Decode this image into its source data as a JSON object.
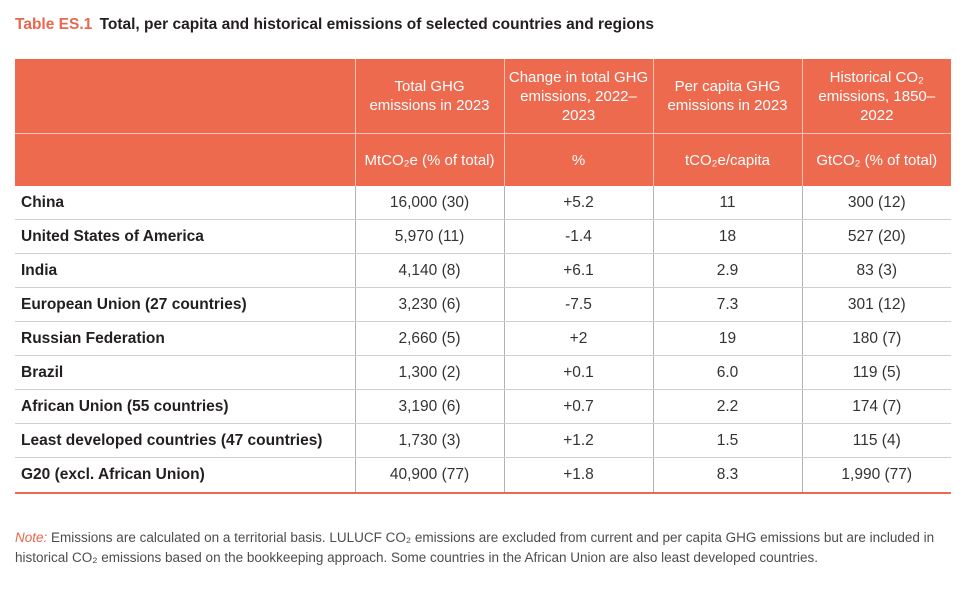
{
  "caption": {
    "number": "Table ES.1",
    "title": "Total, per capita and historical emissions of selected countries and regions"
  },
  "table": {
    "headers": [
      "",
      "Total GHG emissions in 2023",
      "Change in total GHG emissions, 2022–2023",
      "Per capita GHG emissions in 2023",
      "Historical CO₂ emissions, 1850–2022"
    ],
    "units": [
      "",
      "MtCO₂e (% of total)",
      "%",
      "tCO₂e/capita",
      "GtCO₂ (% of total)"
    ],
    "rows": [
      [
        "China",
        "16,000 (30)",
        "+5.2",
        "11",
        "300 (12)"
      ],
      [
        "United States of America",
        "5,970 (11)",
        "-1.4",
        "18",
        "527 (20)"
      ],
      [
        "India",
        "4,140 (8)",
        "+6.1",
        "2.9",
        "83 (3)"
      ],
      [
        "European Union (27 countries)",
        "3,230 (6)",
        "-7.5",
        "7.3",
        "301 (12)"
      ],
      [
        "Russian Federation",
        "2,660 (5)",
        "+2",
        "19",
        "180 (7)"
      ],
      [
        "Brazil",
        "1,300 (2)",
        "+0.1",
        "6.0",
        "119 (5)"
      ],
      [
        "African Union (55 countries)",
        "3,190 (6)",
        "+0.7",
        "2.2",
        "174 (7)"
      ],
      [
        "Least developed countries (47 countries)",
        "1,730 (3)",
        "+1.2",
        "1.5",
        "115 (4)"
      ],
      [
        "G20 (excl. African Union)",
        "40,900 (77)",
        "+1.8",
        "8.3",
        "1,990 (77)"
      ]
    ]
  },
  "note": {
    "label": "Note:",
    "text": "Emissions are calculated on a territorial basis. LULUCF CO₂ emissions are excluded from current and per capita GHG emissions but are included in historical CO₂ emissions based on the bookkeeping approach. Some countries in the African Union are also least developed countries."
  },
  "colors": {
    "accent": "#ee6a4f",
    "header_text": "#ffffff",
    "body_text": "#231f20"
  }
}
